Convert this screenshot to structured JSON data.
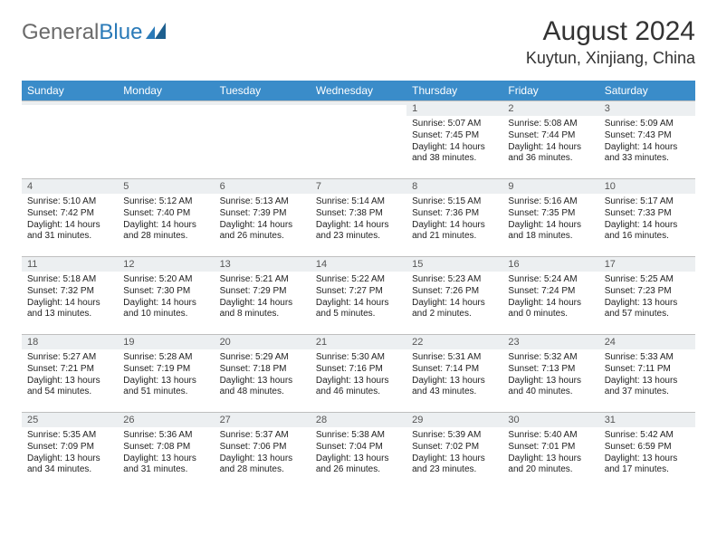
{
  "brand": {
    "part1": "General",
    "part2": "Blue"
  },
  "title": "August 2024",
  "location": "Kuytun, Xinjiang, China",
  "colors": {
    "header_bg": "#3a8cc9",
    "header_text": "#ffffff",
    "daynum_bg": "#eceff1",
    "border": "#bfbfbf",
    "logo_gray": "#6b6b6b",
    "logo_blue": "#2a7ab8"
  },
  "days_of_week": [
    "Sunday",
    "Monday",
    "Tuesday",
    "Wednesday",
    "Thursday",
    "Friday",
    "Saturday"
  ],
  "weeks": [
    [
      {
        "n": "",
        "sunrise": "",
        "sunset": "",
        "daylight": ""
      },
      {
        "n": "",
        "sunrise": "",
        "sunset": "",
        "daylight": ""
      },
      {
        "n": "",
        "sunrise": "",
        "sunset": "",
        "daylight": ""
      },
      {
        "n": "",
        "sunrise": "",
        "sunset": "",
        "daylight": ""
      },
      {
        "n": "1",
        "sunrise": "Sunrise: 5:07 AM",
        "sunset": "Sunset: 7:45 PM",
        "daylight": "Daylight: 14 hours and 38 minutes."
      },
      {
        "n": "2",
        "sunrise": "Sunrise: 5:08 AM",
        "sunset": "Sunset: 7:44 PM",
        "daylight": "Daylight: 14 hours and 36 minutes."
      },
      {
        "n": "3",
        "sunrise": "Sunrise: 5:09 AM",
        "sunset": "Sunset: 7:43 PM",
        "daylight": "Daylight: 14 hours and 33 minutes."
      }
    ],
    [
      {
        "n": "4",
        "sunrise": "Sunrise: 5:10 AM",
        "sunset": "Sunset: 7:42 PM",
        "daylight": "Daylight: 14 hours and 31 minutes."
      },
      {
        "n": "5",
        "sunrise": "Sunrise: 5:12 AM",
        "sunset": "Sunset: 7:40 PM",
        "daylight": "Daylight: 14 hours and 28 minutes."
      },
      {
        "n": "6",
        "sunrise": "Sunrise: 5:13 AM",
        "sunset": "Sunset: 7:39 PM",
        "daylight": "Daylight: 14 hours and 26 minutes."
      },
      {
        "n": "7",
        "sunrise": "Sunrise: 5:14 AM",
        "sunset": "Sunset: 7:38 PM",
        "daylight": "Daylight: 14 hours and 23 minutes."
      },
      {
        "n": "8",
        "sunrise": "Sunrise: 5:15 AM",
        "sunset": "Sunset: 7:36 PM",
        "daylight": "Daylight: 14 hours and 21 minutes."
      },
      {
        "n": "9",
        "sunrise": "Sunrise: 5:16 AM",
        "sunset": "Sunset: 7:35 PM",
        "daylight": "Daylight: 14 hours and 18 minutes."
      },
      {
        "n": "10",
        "sunrise": "Sunrise: 5:17 AM",
        "sunset": "Sunset: 7:33 PM",
        "daylight": "Daylight: 14 hours and 16 minutes."
      }
    ],
    [
      {
        "n": "11",
        "sunrise": "Sunrise: 5:18 AM",
        "sunset": "Sunset: 7:32 PM",
        "daylight": "Daylight: 14 hours and 13 minutes."
      },
      {
        "n": "12",
        "sunrise": "Sunrise: 5:20 AM",
        "sunset": "Sunset: 7:30 PM",
        "daylight": "Daylight: 14 hours and 10 minutes."
      },
      {
        "n": "13",
        "sunrise": "Sunrise: 5:21 AM",
        "sunset": "Sunset: 7:29 PM",
        "daylight": "Daylight: 14 hours and 8 minutes."
      },
      {
        "n": "14",
        "sunrise": "Sunrise: 5:22 AM",
        "sunset": "Sunset: 7:27 PM",
        "daylight": "Daylight: 14 hours and 5 minutes."
      },
      {
        "n": "15",
        "sunrise": "Sunrise: 5:23 AM",
        "sunset": "Sunset: 7:26 PM",
        "daylight": "Daylight: 14 hours and 2 minutes."
      },
      {
        "n": "16",
        "sunrise": "Sunrise: 5:24 AM",
        "sunset": "Sunset: 7:24 PM",
        "daylight": "Daylight: 14 hours and 0 minutes."
      },
      {
        "n": "17",
        "sunrise": "Sunrise: 5:25 AM",
        "sunset": "Sunset: 7:23 PM",
        "daylight": "Daylight: 13 hours and 57 minutes."
      }
    ],
    [
      {
        "n": "18",
        "sunrise": "Sunrise: 5:27 AM",
        "sunset": "Sunset: 7:21 PM",
        "daylight": "Daylight: 13 hours and 54 minutes."
      },
      {
        "n": "19",
        "sunrise": "Sunrise: 5:28 AM",
        "sunset": "Sunset: 7:19 PM",
        "daylight": "Daylight: 13 hours and 51 minutes."
      },
      {
        "n": "20",
        "sunrise": "Sunrise: 5:29 AM",
        "sunset": "Sunset: 7:18 PM",
        "daylight": "Daylight: 13 hours and 48 minutes."
      },
      {
        "n": "21",
        "sunrise": "Sunrise: 5:30 AM",
        "sunset": "Sunset: 7:16 PM",
        "daylight": "Daylight: 13 hours and 46 minutes."
      },
      {
        "n": "22",
        "sunrise": "Sunrise: 5:31 AM",
        "sunset": "Sunset: 7:14 PM",
        "daylight": "Daylight: 13 hours and 43 minutes."
      },
      {
        "n": "23",
        "sunrise": "Sunrise: 5:32 AM",
        "sunset": "Sunset: 7:13 PM",
        "daylight": "Daylight: 13 hours and 40 minutes."
      },
      {
        "n": "24",
        "sunrise": "Sunrise: 5:33 AM",
        "sunset": "Sunset: 7:11 PM",
        "daylight": "Daylight: 13 hours and 37 minutes."
      }
    ],
    [
      {
        "n": "25",
        "sunrise": "Sunrise: 5:35 AM",
        "sunset": "Sunset: 7:09 PM",
        "daylight": "Daylight: 13 hours and 34 minutes."
      },
      {
        "n": "26",
        "sunrise": "Sunrise: 5:36 AM",
        "sunset": "Sunset: 7:08 PM",
        "daylight": "Daylight: 13 hours and 31 minutes."
      },
      {
        "n": "27",
        "sunrise": "Sunrise: 5:37 AM",
        "sunset": "Sunset: 7:06 PM",
        "daylight": "Daylight: 13 hours and 28 minutes."
      },
      {
        "n": "28",
        "sunrise": "Sunrise: 5:38 AM",
        "sunset": "Sunset: 7:04 PM",
        "daylight": "Daylight: 13 hours and 26 minutes."
      },
      {
        "n": "29",
        "sunrise": "Sunrise: 5:39 AM",
        "sunset": "Sunset: 7:02 PM",
        "daylight": "Daylight: 13 hours and 23 minutes."
      },
      {
        "n": "30",
        "sunrise": "Sunrise: 5:40 AM",
        "sunset": "Sunset: 7:01 PM",
        "daylight": "Daylight: 13 hours and 20 minutes."
      },
      {
        "n": "31",
        "sunrise": "Sunrise: 5:42 AM",
        "sunset": "Sunset: 6:59 PM",
        "daylight": "Daylight: 13 hours and 17 minutes."
      }
    ]
  ]
}
